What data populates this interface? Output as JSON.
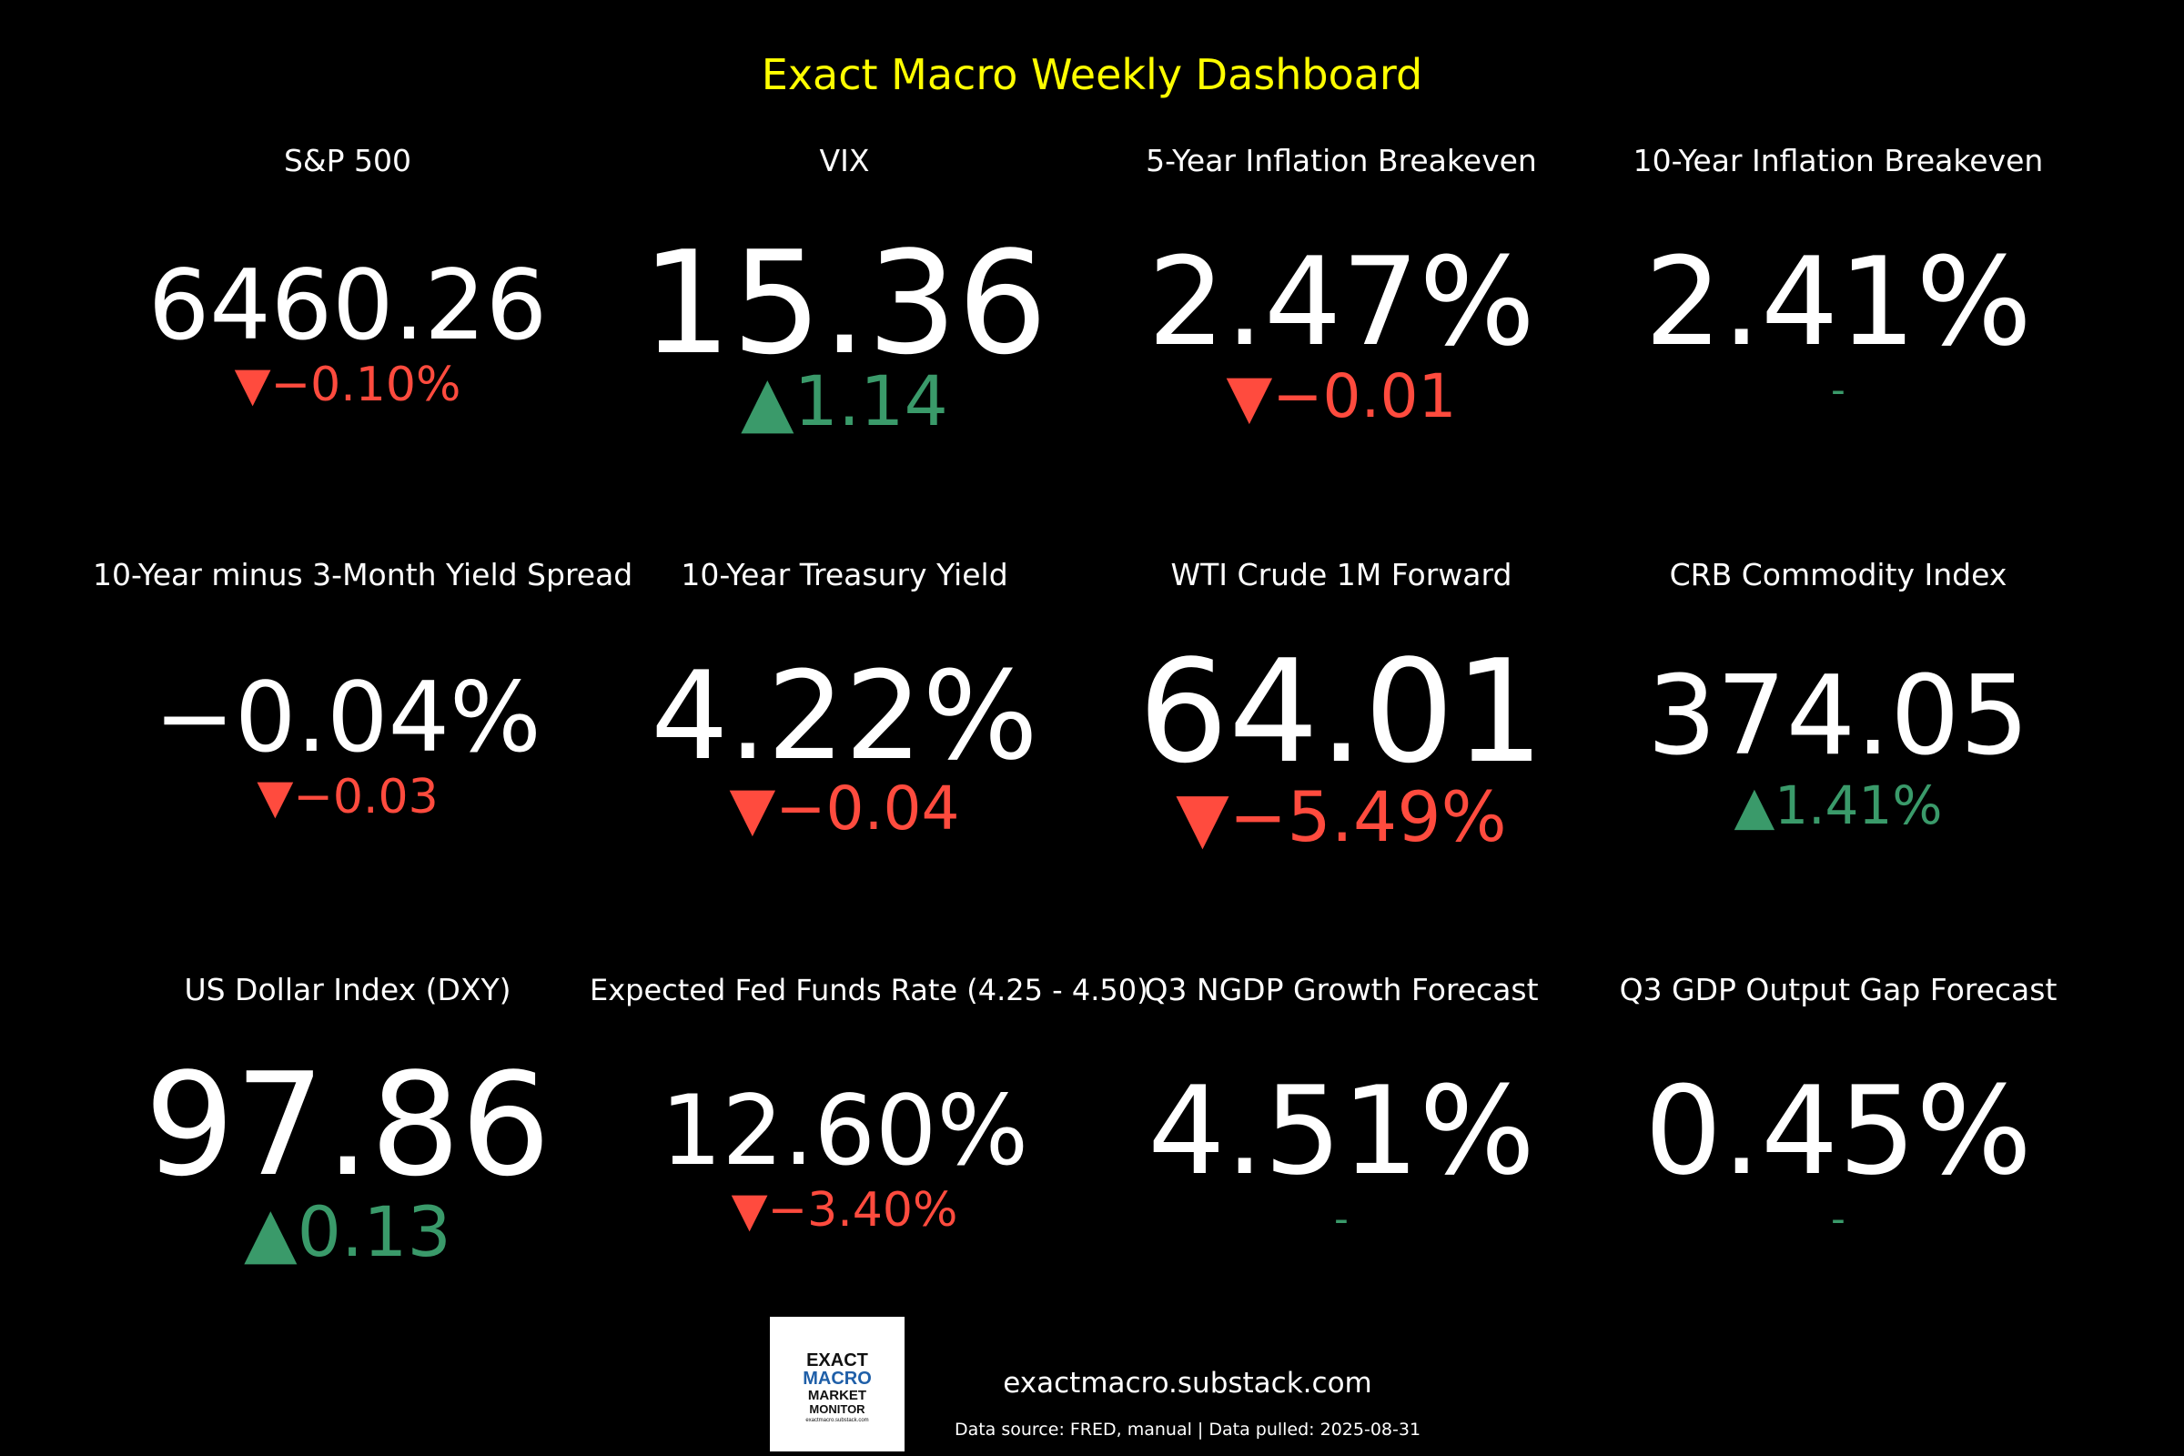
{
  "dashboard": {
    "title": "Exact Macro Weekly Dashboard",
    "colors": {
      "background": "#000000",
      "title": "#ffff00",
      "value": "#ffffff",
      "up": "#3a9a6a",
      "down": "#ff4b3e",
      "neutral": "#3a9a6a"
    }
  },
  "tiles": [
    {
      "label": "S&P 500",
      "value": "6460.26",
      "direction": "down",
      "arrow": "▼",
      "change": "−0.10%"
    },
    {
      "label": "VIX",
      "value": "15.36",
      "direction": "up",
      "arrow": "▲",
      "change": "1.14"
    },
    {
      "label": "5-Year Inflation Breakeven",
      "value": "2.47%",
      "direction": "down",
      "arrow": "▼",
      "change": "−0.01"
    },
    {
      "label": "10-Year Inflation Breakeven",
      "value": "2.41%",
      "direction": "none",
      "arrow": "",
      "change": "-"
    },
    {
      "label": "10-Year minus 3-Month Yield Spread",
      "value": "−0.04%",
      "direction": "down",
      "arrow": "▼",
      "change": "−0.03"
    },
    {
      "label": "10-Year Treasury Yield",
      "value": "4.22%",
      "direction": "down",
      "arrow": "▼",
      "change": "−0.04"
    },
    {
      "label": "WTI Crude 1M Forward",
      "value": "64.01",
      "direction": "down",
      "arrow": "▼",
      "change": "−5.49%"
    },
    {
      "label": "CRB Commodity Index",
      "value": "374.05",
      "direction": "up",
      "arrow": "▲",
      "change": "1.41%"
    },
    {
      "label": "US Dollar Index (DXY)",
      "value": "97.86",
      "direction": "up",
      "arrow": "▲",
      "change": "0.13"
    },
    {
      "label": "Expected Fed Funds Rate (4.25 - 4.50)",
      "value": "12.60%",
      "direction": "down",
      "arrow": "▼",
      "change": "−3.40%"
    },
    {
      "label": "Q3 NGDP Growth Forecast",
      "value": "4.51%",
      "direction": "none",
      "arrow": "",
      "change": "-"
    },
    {
      "label": "Q3 GDP Output Gap Forecast",
      "value": "0.45%",
      "direction": "none",
      "arrow": "",
      "change": "-"
    }
  ],
  "footer": {
    "logo": {
      "line1": "EXACT",
      "line2": "MACRO",
      "line3": "MARKET",
      "line4": "MONITOR",
      "line5": "exactmacro.substack.com",
      "accent": "#1f5fa8"
    },
    "site": "exactmacro.substack.com",
    "source": "Data source: FRED, manual | Data pulled: 2025-08-31"
  }
}
